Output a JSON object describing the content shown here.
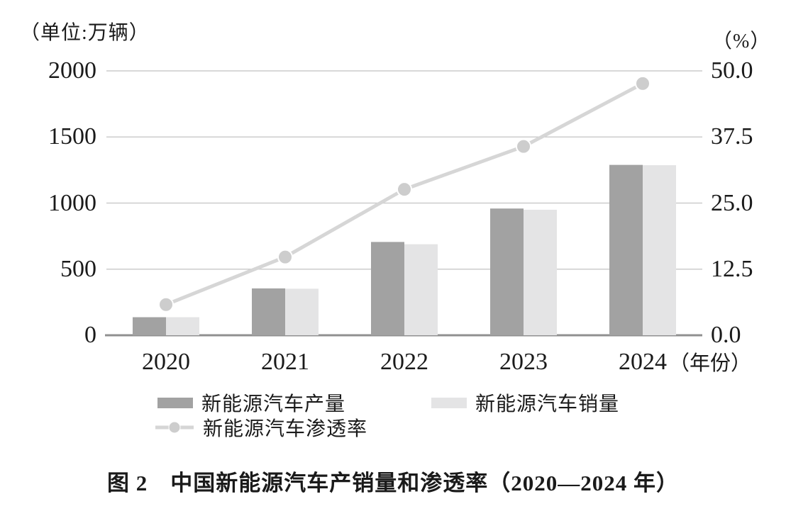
{
  "figure": {
    "left_unit_label": "（单位:万辆）",
    "right_unit_label": "（%）",
    "x_axis_suffix": "（年份）",
    "caption": "图 2　中国新能源汽车产销量和渗透率（2020—2024 年）"
  },
  "legend": {
    "production": "新能源汽车产量",
    "sales": "新能源汽车销量",
    "penetration": "新能源汽车渗透率"
  },
  "colors": {
    "production_bar": "#a2a2a2",
    "sales_bar": "#e4e4e5",
    "line": "#d6d6d6",
    "marker": "#cdcdcd",
    "marker_edge": "#ffffff",
    "gridline": "#cccccc",
    "baseline": "#909090",
    "text": "#1a1a1a"
  },
  "chart_data": {
    "type": "bar+line",
    "title": "中国新能源汽车产销量和渗透率（2020—2024 年）",
    "categories": [
      "2020",
      "2021",
      "2022",
      "2023",
      "2024"
    ],
    "series": [
      {
        "name": "新能源汽车产量",
        "type": "bar",
        "axis": "left",
        "unit": "万辆",
        "values": [
          136.6,
          354.5,
          705.8,
          958.7,
          1288.8
        ]
      },
      {
        "name": "新能源汽车销量",
        "type": "bar",
        "axis": "left",
        "unit": "万辆",
        "values": [
          136.7,
          352.1,
          688.7,
          949.5,
          1286.6
        ]
      },
      {
        "name": "新能源汽车渗透率",
        "type": "line",
        "axis": "right",
        "unit": "%",
        "values": [
          5.8,
          14.8,
          27.6,
          35.7,
          47.6
        ]
      }
    ],
    "left_axis": {
      "unit": "万辆",
      "range": [
        0,
        2000
      ],
      "ticks": [
        "0",
        "500",
        "1000",
        "1500",
        "2000"
      ]
    },
    "right_axis": {
      "unit": "%",
      "range": [
        0,
        50
      ],
      "ticks": [
        "0.0",
        "12.5",
        "25.0",
        "37.5",
        "50.0"
      ]
    },
    "x_axis": {
      "label": "（年份）"
    },
    "grid": true,
    "legend_position": "bottom"
  }
}
